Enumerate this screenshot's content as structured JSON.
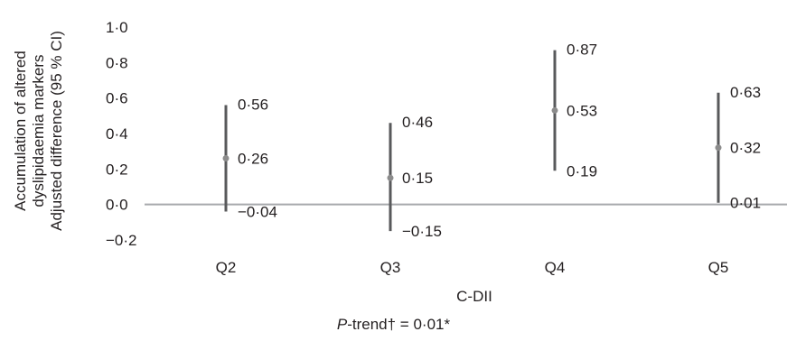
{
  "chart_data": {
    "type": "errorbar",
    "categories": [
      "Q2",
      "Q3",
      "Q4",
      "Q5"
    ],
    "estimates": [
      0.26,
      0.15,
      0.53,
      0.32
    ],
    "estimate_labels": [
      "0·26",
      "0·15",
      "0·53",
      "0·32"
    ],
    "upper": [
      0.56,
      0.46,
      0.87,
      0.63
    ],
    "upper_labels": [
      "0·56",
      "0·46",
      "0·87",
      "0·63"
    ],
    "lower": [
      -0.04,
      -0.15,
      0.19,
      0.01
    ],
    "lower_labels": [
      "−0·04",
      "−0·15",
      "0·19",
      "0·01"
    ],
    "yticks": [
      1.0,
      0.8,
      0.6,
      0.4,
      0.2,
      0.0,
      -0.2
    ],
    "ytick_labels": [
      "1·0",
      "0·8",
      "0·6",
      "0·4",
      "0·2",
      "0·0",
      "−0·2"
    ],
    "ylim": [
      -0.2,
      1.0
    ],
    "xlabel": "C-DII",
    "ylabel_lines": [
      "Accumulation of altered",
      "dyslipidaemia markers",
      "Adjusted difference (95 % CI)"
    ],
    "footnote": {
      "p_italic": "P",
      "rest": "-trend† = 0·01*"
    },
    "colors": {
      "bar": "#58595b",
      "point": "#8c8c8c",
      "zero_line": "#a7a9ac",
      "text": "#231f20"
    }
  }
}
